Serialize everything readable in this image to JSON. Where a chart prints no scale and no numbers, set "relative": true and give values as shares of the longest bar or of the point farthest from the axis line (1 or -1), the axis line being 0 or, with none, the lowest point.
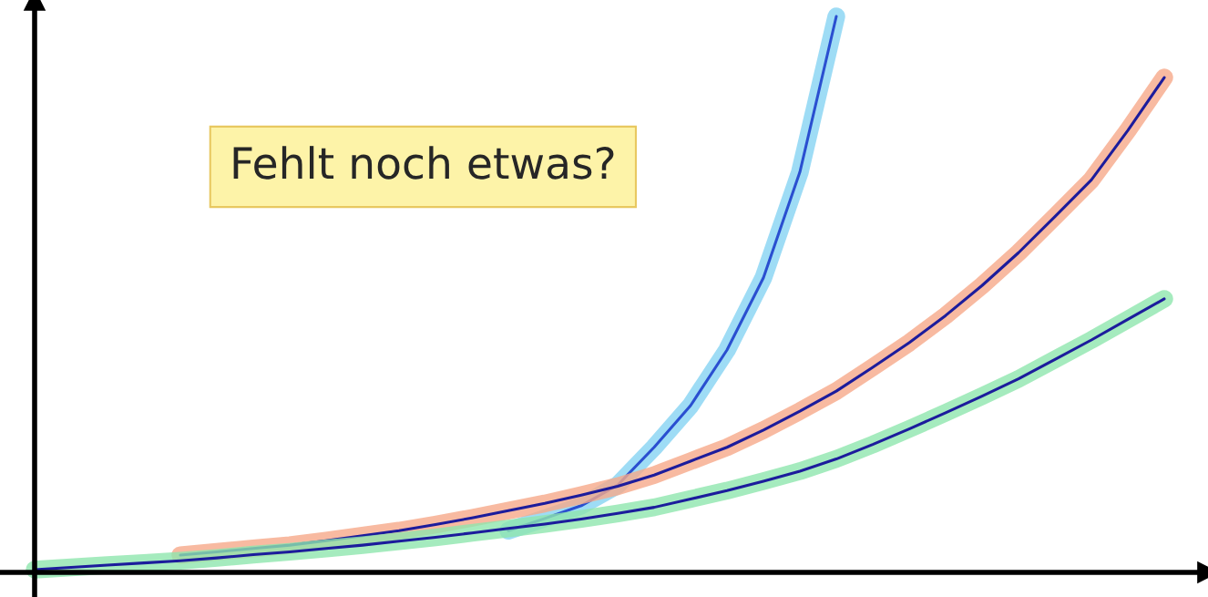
{
  "chart_data": {
    "type": "line",
    "relative": true,
    "categories": [
      null,
      null,
      null,
      null,
      null,
      null,
      null,
      null,
      null,
      null,
      null,
      null,
      null,
      null,
      null,
      null,
      null,
      null,
      null,
      null,
      null,
      null,
      null,
      null,
      null,
      null,
      null,
      null,
      null,
      null,
      null,
      null
    ],
    "series": [
      {
        "color": "#86d3f2",
        "values": [
          null,
          null,
          null,
          null,
          null,
          null,
          null,
          null,
          null,
          null,
          null,
          null,
          null,
          0.075,
          0.097,
          0.12,
          0.157,
          0.225,
          0.3,
          0.4,
          0.53,
          0.72,
          1.0,
          null,
          null,
          null,
          null,
          null,
          null,
          null,
          null,
          null
        ]
      },
      {
        "color": "#f6a98a",
        "values": [
          null,
          null,
          null,
          null,
          0.031,
          0.037,
          0.043,
          0.049,
          0.057,
          0.066,
          0.075,
          0.086,
          0.098,
          0.111,
          0.124,
          0.139,
          0.155,
          0.175,
          0.2,
          0.225,
          0.256,
          0.29,
          0.326,
          0.369,
          0.413,
          0.462,
          0.516,
          0.575,
          0.64,
          0.706,
          0.795,
          0.89
        ]
      },
      {
        "color": "#8ee6ae",
        "values": [
          0.005,
          0.009,
          0.013,
          0.017,
          0.021,
          0.026,
          0.032,
          0.037,
          0.043,
          0.049,
          0.056,
          0.063,
          0.071,
          0.079,
          0.087,
          0.096,
          0.106,
          0.117,
          0.132,
          0.147,
          0.164,
          0.182,
          0.204,
          0.23,
          0.258,
          0.287,
          0.317,
          0.348,
          0.383,
          0.418,
          0.455,
          0.492
        ]
      }
    ],
    "annotations": [
      "Fehlt noch etwas?"
    ],
    "legend": false
  }
}
